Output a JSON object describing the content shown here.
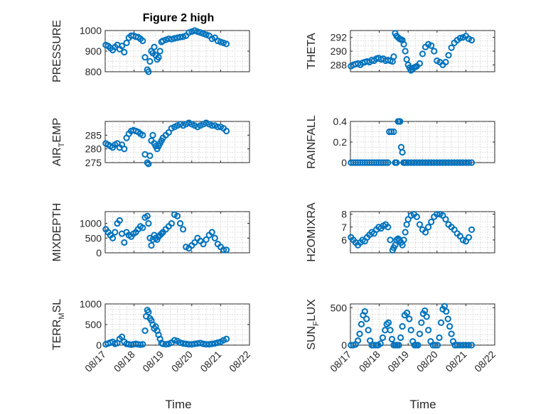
{
  "figure": {
    "title": "Figure 2 high",
    "xlabel": "Time",
    "marker_color": "#0072BD"
  },
  "x_ticks": [
    "08/17",
    "08/18",
    "08/19",
    "08/20",
    "08/21",
    "08/22"
  ],
  "chart_data": [
    {
      "type": "scatter",
      "ylabel": "PRESSURE",
      "xlim": [
        0,
        5
      ],
      "ylim": [
        800,
        1000
      ],
      "yticks": [
        800,
        900,
        1000
      ],
      "grid": true,
      "x": [
        0.02,
        0.1,
        0.18,
        0.26,
        0.34,
        0.42,
        0.5,
        0.58,
        0.66,
        0.74,
        0.82,
        0.9,
        0.98,
        1.06,
        1.14,
        1.22,
        1.3,
        1.38,
        1.46,
        1.5,
        1.55,
        1.6,
        1.65,
        1.7,
        1.75,
        1.8,
        1.85,
        1.9,
        1.95,
        2.0,
        2.1,
        2.2,
        2.3,
        2.4,
        2.5,
        2.6,
        2.7,
        2.8,
        2.9,
        3.0,
        3.1,
        3.2,
        3.3,
        3.4,
        3.5,
        3.6,
        3.7,
        3.8,
        3.9,
        4.0,
        4.1,
        4.2
      ],
      "y": [
        930,
        925,
        915,
        905,
        920,
        930,
        910,
        925,
        895,
        940,
        965,
        975,
        975,
        970,
        968,
        960,
        950,
        870,
        810,
        800,
        850,
        900,
        890,
        920,
        880,
        860,
        870,
        900,
        945,
        950,
        955,
        960,
        958,
        962,
        965,
        968,
        970,
        975,
        990,
        995,
        1000,
        995,
        990,
        985,
        980,
        975,
        960,
        965,
        950,
        945,
        940,
        935
      ]
    },
    {
      "type": "scatter",
      "ylabel": "THETA",
      "xlim": [
        0,
        5
      ],
      "ylim": [
        287,
        293
      ],
      "yticks": [
        288,
        290,
        292
      ],
      "grid": true,
      "x": [
        0.02,
        0.1,
        0.18,
        0.26,
        0.34,
        0.42,
        0.5,
        0.58,
        0.66,
        0.74,
        0.82,
        0.9,
        0.98,
        1.06,
        1.14,
        1.22,
        1.3,
        1.38,
        1.46,
        1.5,
        1.55,
        1.6,
        1.65,
        1.7,
        1.75,
        1.8,
        1.85,
        1.9,
        1.95,
        2.0,
        2.05,
        2.1,
        2.15,
        2.2,
        2.25,
        2.3,
        2.4,
        2.5,
        2.6,
        2.7,
        2.8,
        2.9,
        3.0,
        3.1,
        3.2,
        3.3,
        3.4,
        3.5,
        3.6,
        3.7,
        3.8,
        3.9,
        4.0,
        4.1,
        4.2
      ],
      "y": [
        287.8,
        288.0,
        288.1,
        288.2,
        288.0,
        288.3,
        288.4,
        288.5,
        288.4,
        288.7,
        288.6,
        288.9,
        289.0,
        288.8,
        288.9,
        288.6,
        288.7,
        288.6,
        288.5,
        289.2,
        292.6,
        292.2,
        292.0,
        291.8,
        291.7,
        291.6,
        291.0,
        290.0,
        288.8,
        288.0,
        287.6,
        287.2,
        287.4,
        287.6,
        287.7,
        287.8,
        288.2,
        289.6,
        290.6,
        291.0,
        290.8,
        290.0,
        288.6,
        288.4,
        288.0,
        288.4,
        289.4,
        290.5,
        291.2,
        291.6,
        291.9,
        292.0,
        292.2,
        291.8,
        291.6
      ]
    },
    {
      "type": "scatter",
      "ylabel": "AIR_TEMP",
      "xlim": [
        0,
        5
      ],
      "ylim": [
        275,
        290
      ],
      "yticks": [
        275,
        280,
        285
      ],
      "grid": true,
      "x": [
        0.02,
        0.1,
        0.18,
        0.26,
        0.34,
        0.42,
        0.5,
        0.58,
        0.66,
        0.74,
        0.82,
        0.9,
        0.98,
        1.06,
        1.14,
        1.22,
        1.3,
        1.38,
        1.46,
        1.5,
        1.55,
        1.6,
        1.65,
        1.7,
        1.75,
        1.8,
        1.85,
        1.9,
        1.95,
        2.0,
        2.1,
        2.2,
        2.3,
        2.4,
        2.5,
        2.6,
        2.7,
        2.8,
        2.9,
        3.0,
        3.1,
        3.2,
        3.3,
        3.4,
        3.5,
        3.6,
        3.7,
        3.8,
        3.9,
        4.0,
        4.1,
        4.2
      ],
      "y": [
        282,
        281.5,
        281,
        280.5,
        281.5,
        282,
        280.5,
        281.5,
        280,
        284,
        285.5,
        286.5,
        286.8,
        286.5,
        286.2,
        285.5,
        285,
        278,
        275,
        274.5,
        277.5,
        283,
        285,
        282,
        281,
        280,
        281,
        282,
        283,
        284,
        285,
        286,
        287.5,
        288,
        288.5,
        289,
        288.5,
        289,
        289.5,
        289,
        288.5,
        288,
        288.5,
        289,
        289.5,
        289,
        288.5,
        288.5,
        288,
        288,
        287.5,
        286.5
      ]
    },
    {
      "type": "scatter",
      "ylabel": "RAINFALL",
      "xlim": [
        0,
        5
      ],
      "ylim": [
        0,
        0.4
      ],
      "yticks": [
        0,
        0.2,
        0.4
      ],
      "grid": true,
      "x": [
        0.02,
        0.1,
        0.18,
        0.26,
        0.34,
        0.42,
        0.5,
        0.58,
        0.66,
        0.74,
        0.82,
        0.9,
        0.98,
        1.06,
        1.14,
        1.22,
        1.3,
        1.35,
        1.42,
        1.5,
        1.55,
        1.6,
        1.65,
        1.7,
        1.72,
        1.76,
        1.8,
        1.84,
        1.88,
        1.92,
        2.0,
        2.1,
        2.2,
        2.3,
        2.4,
        2.5,
        2.6,
        2.7,
        2.8,
        2.9,
        3.0,
        3.1,
        3.2,
        3.3,
        3.4,
        3.5,
        3.6,
        3.7,
        3.8,
        3.9,
        4.0,
        4.1,
        4.2
      ],
      "y": [
        0,
        0,
        0,
        0,
        0,
        0,
        0,
        0,
        0,
        0,
        0,
        0,
        0,
        0,
        0,
        0,
        0,
        0.3,
        0.3,
        0.3,
        0,
        0,
        0.4,
        0.4,
        0.4,
        0.15,
        0.1,
        0,
        0,
        0,
        0,
        0,
        0,
        0,
        0,
        0,
        0,
        0,
        0,
        0,
        0,
        0,
        0,
        0,
        0,
        0,
        0,
        0,
        0,
        0,
        0,
        0,
        0
      ]
    },
    {
      "type": "scatter",
      "ylabel": "MIXDEPTH",
      "xlim": [
        0,
        5
      ],
      "ylim": [
        0,
        1400
      ],
      "yticks": [
        0,
        500,
        1000
      ],
      "grid": true,
      "x": [
        0.02,
        0.1,
        0.18,
        0.26,
        0.34,
        0.42,
        0.5,
        0.58,
        0.66,
        0.74,
        0.82,
        0.9,
        0.98,
        1.06,
        1.14,
        1.22,
        1.3,
        1.38,
        1.46,
        1.5,
        1.55,
        1.6,
        1.65,
        1.7,
        1.75,
        1.8,
        1.85,
        1.9,
        1.95,
        2.0,
        2.1,
        2.2,
        2.3,
        2.4,
        2.5,
        2.6,
        2.7,
        2.8,
        2.9,
        3.0,
        3.1,
        3.2,
        3.3,
        3.4,
        3.5,
        3.6,
        3.7,
        3.8,
        3.9,
        4.0,
        4.1,
        4.2
      ],
      "y": [
        800,
        700,
        600,
        500,
        700,
        1000,
        1100,
        650,
        350,
        700,
        600,
        550,
        650,
        700,
        800,
        900,
        850,
        1200,
        1250,
        1000,
        500,
        250,
        450,
        600,
        500,
        450,
        550,
        600,
        650,
        700,
        800,
        900,
        1000,
        1300,
        1250,
        1000,
        800,
        200,
        150,
        250,
        350,
        500,
        400,
        300,
        450,
        600,
        700,
        500,
        300,
        200,
        100,
        100
      ]
    },
    {
      "type": "scatter",
      "ylabel": "H2OMIXRA",
      "xlim": [
        0,
        5
      ],
      "ylim": [
        5,
        8.2
      ],
      "yticks": [
        6,
        7,
        8
      ],
      "grid": true,
      "x": [
        0.02,
        0.1,
        0.18,
        0.26,
        0.34,
        0.42,
        0.5,
        0.58,
        0.66,
        0.74,
        0.82,
        0.9,
        0.98,
        1.06,
        1.14,
        1.22,
        1.3,
        1.38,
        1.46,
        1.5,
        1.55,
        1.6,
        1.65,
        1.7,
        1.75,
        1.8,
        1.85,
        1.9,
        1.95,
        2.0,
        2.1,
        2.2,
        2.3,
        2.4,
        2.5,
        2.6,
        2.7,
        2.8,
        2.9,
        3.0,
        3.1,
        3.2,
        3.3,
        3.4,
        3.5,
        3.6,
        3.7,
        3.8,
        3.9,
        4.0,
        4.1,
        4.2
      ],
      "y": [
        6.2,
        6.0,
        5.8,
        5.6,
        5.8,
        6.0,
        5.9,
        6.2,
        6.4,
        6.6,
        6.5,
        6.8,
        7.0,
        6.9,
        7.1,
        7.2,
        7.0,
        6.0,
        5.2,
        5.4,
        5.6,
        6.0,
        6.1,
        6.0,
        5.8,
        5.6,
        6.0,
        6.6,
        7.2,
        7.6,
        7.9,
        8.0,
        7.8,
        7.2,
        6.8,
        6.6,
        7.0,
        7.4,
        7.8,
        8.0,
        8.0,
        7.9,
        7.6,
        7.2,
        7.0,
        6.8,
        6.5,
        6.3,
        6.0,
        5.9,
        6.2,
        6.8
      ]
    },
    {
      "type": "scatter",
      "ylabel": "TERR_MSL",
      "xlim": [
        0,
        5
      ],
      "ylim": [
        0,
        1000
      ],
      "yticks": [
        0,
        500,
        1000
      ],
      "grid": true,
      "x": [
        0.02,
        0.1,
        0.18,
        0.26,
        0.34,
        0.42,
        0.5,
        0.58,
        0.66,
        0.74,
        0.82,
        0.9,
        0.98,
        1.06,
        1.14,
        1.22,
        1.3,
        1.38,
        1.42,
        1.46,
        1.5,
        1.55,
        1.6,
        1.65,
        1.7,
        1.75,
        1.8,
        1.85,
        1.9,
        1.95,
        2.0,
        2.1,
        2.2,
        2.3,
        2.4,
        2.5,
        2.6,
        2.7,
        2.8,
        2.9,
        3.0,
        3.1,
        3.2,
        3.3,
        3.4,
        3.5,
        3.6,
        3.7,
        3.8,
        3.9,
        4.0,
        4.1,
        4.2
      ],
      "y": [
        20,
        40,
        60,
        80,
        30,
        50,
        150,
        200,
        80,
        30,
        20,
        10,
        20,
        30,
        20,
        10,
        20,
        350,
        700,
        850,
        800,
        650,
        600,
        500,
        400,
        450,
        350,
        250,
        150,
        50,
        30,
        20,
        30,
        60,
        120,
        100,
        60,
        40,
        30,
        20,
        20,
        30,
        40,
        50,
        30,
        20,
        20,
        30,
        40,
        60,
        80,
        120,
        150
      ]
    },
    {
      "type": "scatter",
      "ylabel": "SUN_FLUX",
      "xlim": [
        0,
        5
      ],
      "ylim": [
        0,
        550
      ],
      "yticks": [
        0,
        500
      ],
      "grid": true,
      "x": [
        0.02,
        0.1,
        0.18,
        0.26,
        0.32,
        0.38,
        0.44,
        0.5,
        0.56,
        0.62,
        0.68,
        0.74,
        0.8,
        0.88,
        0.96,
        1.04,
        1.12,
        1.2,
        1.26,
        1.32,
        1.38,
        1.44,
        1.5,
        1.56,
        1.62,
        1.68,
        1.74,
        1.8,
        1.88,
        1.96,
        2.04,
        2.1,
        2.16,
        2.22,
        2.28,
        2.34,
        2.4,
        2.46,
        2.52,
        2.58,
        2.64,
        2.7,
        2.78,
        2.86,
        2.94,
        3.02,
        3.08,
        3.14,
        3.2,
        3.26,
        3.32,
        3.38,
        3.44,
        3.5,
        3.56,
        3.62,
        3.7,
        3.8,
        3.9,
        4.0,
        4.1,
        4.2
      ],
      "y": [
        0,
        0,
        10,
        60,
        150,
        280,
        400,
        450,
        350,
        200,
        60,
        0,
        0,
        0,
        0,
        20,
        100,
        200,
        280,
        300,
        200,
        80,
        0,
        0,
        0,
        0,
        100,
        250,
        400,
        430,
        350,
        200,
        50,
        0,
        0,
        0,
        150,
        300,
        420,
        460,
        380,
        200,
        50,
        0,
        0,
        0,
        100,
        300,
        480,
        520,
        450,
        350,
        250,
        150,
        50,
        0,
        0,
        0,
        0,
        0,
        0,
        0
      ]
    }
  ]
}
